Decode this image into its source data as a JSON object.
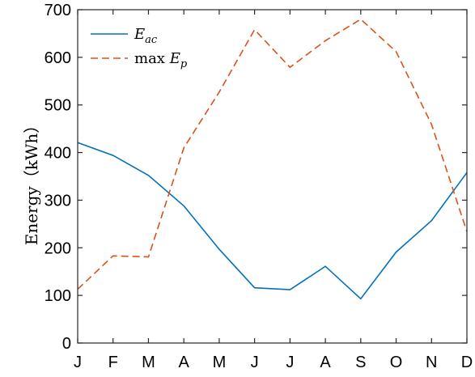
{
  "chart_data": {
    "type": "line",
    "title": "",
    "xlabel": "",
    "ylabel": "Energy（kWh）",
    "categories": [
      "J",
      "F",
      "M",
      "A",
      "M",
      "J",
      "J",
      "A",
      "S",
      "O",
      "N",
      "D"
    ],
    "ylim": [
      0,
      700
    ],
    "yticks": [
      0,
      100,
      200,
      300,
      400,
      500,
      600,
      700
    ],
    "grid": false,
    "legend_position": "top-left",
    "series": [
      {
        "name": "E_ac",
        "legend": {
          "base": "E",
          "sub": "ac",
          "prefix": ""
        },
        "color": "#0072BD",
        "dash": "solid",
        "values": [
          421,
          394,
          352,
          288,
          197,
          116,
          112,
          161,
          93,
          191,
          257,
          358
        ]
      },
      {
        "name": "max E_p",
        "legend": {
          "base": "E",
          "sub": "p",
          "prefix": "max "
        },
        "color": "#D95319",
        "dash": "dashed",
        "values": [
          113,
          183,
          181,
          410,
          527,
          658,
          579,
          635,
          680,
          612,
          459,
          234
        ]
      }
    ]
  }
}
